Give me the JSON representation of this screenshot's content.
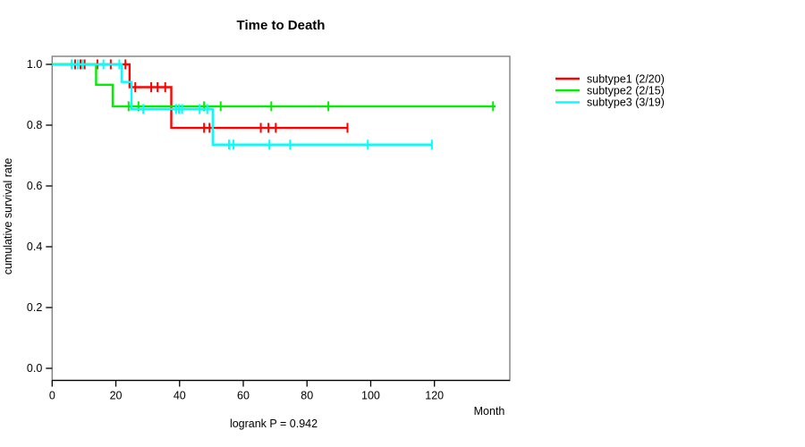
{
  "chart_data": {
    "type": "line",
    "variant": "kaplan-meier-step",
    "title": "Time to Death",
    "xlabel": "Month",
    "ylabel": "cumulative survival rate",
    "footer": "logrank P = 0.942",
    "x_ticks": [
      0,
      20,
      40,
      60,
      80,
      100,
      120
    ],
    "y_ticks": [
      0.0,
      0.2,
      0.4,
      0.6,
      0.8,
      1.0
    ],
    "xlim": [
      0,
      143.7
    ],
    "ylim": [
      0.0,
      1.0
    ],
    "grid": false,
    "legend_position": "right-outside",
    "box_color": "#808080",
    "axis_color": "#000000",
    "series": [
      {
        "name": "subtype1 (2/20)",
        "color": "#ff0000",
        "start_rate": 1.0,
        "drops": [
          {
            "month": 24.3,
            "rate": 0.925
          },
          {
            "month": 37.4,
            "rate": 0.791
          }
        ],
        "end_month": 92.7,
        "censored": [
          [
            7.2,
            1.0
          ],
          [
            8.9,
            1.0
          ],
          [
            10.2,
            1.0
          ],
          [
            14.2,
            1.0
          ],
          [
            18.4,
            1.0
          ],
          [
            23.0,
            1.0
          ],
          [
            26.1,
            0.925
          ],
          [
            31.1,
            0.925
          ],
          [
            33.1,
            0.925
          ],
          [
            35.5,
            0.925
          ],
          [
            47.7,
            0.791
          ],
          [
            49.4,
            0.791
          ],
          [
            65.5,
            0.791
          ],
          [
            67.9,
            0.791
          ],
          [
            70.2,
            0.791
          ],
          [
            92.7,
            0.791
          ]
        ]
      },
      {
        "name": "subtype2 (2/15)",
        "color": "#00ee00",
        "start_rate": 1.0,
        "drops": [
          {
            "month": 13.8,
            "rate": 0.933
          },
          {
            "month": 19.0,
            "rate": 0.862
          }
        ],
        "end_month": 139.2,
        "censored": [
          [
            24.0,
            0.862
          ],
          [
            27.1,
            0.862
          ],
          [
            47.7,
            0.862
          ],
          [
            52.9,
            0.862
          ],
          [
            68.8,
            0.862
          ],
          [
            86.7,
            0.862
          ],
          [
            138.4,
            0.862
          ]
        ]
      },
      {
        "name": "subtype3 (3/19)",
        "color": "#00ffff",
        "start_rate": 1.0,
        "drops": [
          {
            "month": 21.8,
            "rate": 0.942
          },
          {
            "month": 24.9,
            "rate": 0.853
          },
          {
            "month": 50.4,
            "rate": 0.736
          }
        ],
        "end_month": 119.2,
        "censored": [
          [
            6.1,
            1.0
          ],
          [
            8.1,
            1.0
          ],
          [
            9.5,
            1.0
          ],
          [
            16.1,
            1.0
          ],
          [
            21.1,
            1.0
          ],
          [
            28.6,
            0.853
          ],
          [
            38.9,
            0.853
          ],
          [
            39.8,
            0.853
          ],
          [
            40.8,
            0.853
          ],
          [
            46.3,
            0.853
          ],
          [
            48.7,
            0.853
          ],
          [
            55.5,
            0.736
          ],
          [
            56.9,
            0.736
          ],
          [
            68.2,
            0.736
          ],
          [
            74.7,
            0.736
          ],
          [
            99.1,
            0.736
          ],
          [
            119.2,
            0.736
          ]
        ]
      }
    ]
  }
}
